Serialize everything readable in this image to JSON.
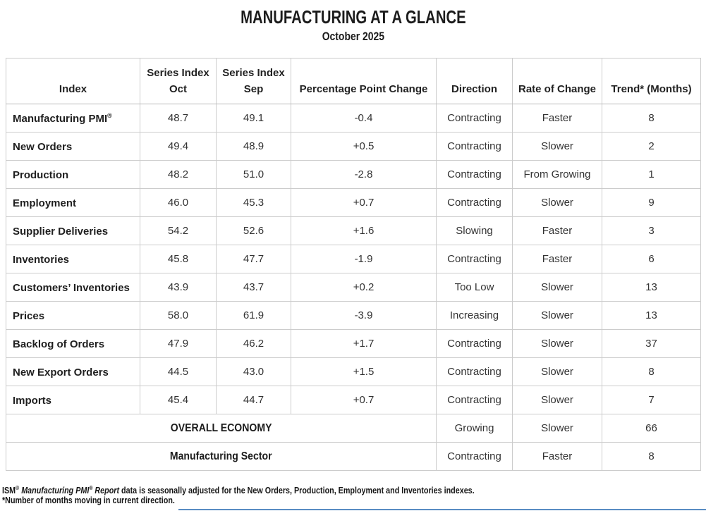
{
  "page": {
    "title": "MANUFACTURING AT A GLANCE",
    "subtitle": "October 2025"
  },
  "colors": {
    "border": "#cccccc",
    "header_divider": "#b9b9b9",
    "text": "#212121",
    "accent_line": "#3b78b8"
  },
  "table": {
    "header": [
      {
        "line1": "Index",
        "line2": ""
      },
      {
        "line1": "Series Index",
        "line2": "Oct"
      },
      {
        "line1": "Series Index",
        "line2": "Sep"
      },
      {
        "line1": "Percentage Point Change",
        "line2": ""
      },
      {
        "line1": "Direction",
        "line2": ""
      },
      {
        "line1": "Rate of Change",
        "line2": ""
      },
      {
        "line1": "Trend* (Months)",
        "line2": ""
      }
    ],
    "rows": [
      {
        "index": "Manufacturing PMI",
        "index_sup": "®",
        "oct": "48.7",
        "sep": "49.1",
        "change": "-0.4",
        "direction": "Contracting",
        "rate": "Faster",
        "trend": "8"
      },
      {
        "index": "New Orders",
        "index_sup": "",
        "oct": "49.4",
        "sep": "48.9",
        "change": "+0.5",
        "direction": "Contracting",
        "rate": "Slower",
        "trend": "2"
      },
      {
        "index": "Production",
        "index_sup": "",
        "oct": "48.2",
        "sep": "51.0",
        "change": "-2.8",
        "direction": "Contracting",
        "rate": "From Growing",
        "trend": "1"
      },
      {
        "index": "Employment",
        "index_sup": "",
        "oct": "46.0",
        "sep": "45.3",
        "change": "+0.7",
        "direction": "Contracting",
        "rate": "Slower",
        "trend": "9"
      },
      {
        "index": "Supplier Deliveries",
        "index_sup": "",
        "oct": "54.2",
        "sep": "52.6",
        "change": "+1.6",
        "direction": "Slowing",
        "rate": "Faster",
        "trend": "3"
      },
      {
        "index": "Inventories",
        "index_sup": "",
        "oct": "45.8",
        "sep": "47.7",
        "change": "-1.9",
        "direction": "Contracting",
        "rate": "Faster",
        "trend": "6"
      },
      {
        "index": "Customers’ Inventories",
        "index_sup": "",
        "oct": "43.9",
        "sep": "43.7",
        "change": "+0.2",
        "direction": "Too Low",
        "rate": "Slower",
        "trend": "13"
      },
      {
        "index": "Prices",
        "index_sup": "",
        "oct": "58.0",
        "sep": "61.9",
        "change": "-3.9",
        "direction": "Increasing",
        "rate": "Slower",
        "trend": "13"
      },
      {
        "index": "Backlog of Orders",
        "index_sup": "",
        "oct": "47.9",
        "sep": "46.2",
        "change": "+1.7",
        "direction": "Contracting",
        "rate": "Slower",
        "trend": "37"
      },
      {
        "index": "New Export Orders",
        "index_sup": "",
        "oct": "44.5",
        "sep": "43.0",
        "change": "+1.5",
        "direction": "Contracting",
        "rate": "Slower",
        "trend": "8"
      },
      {
        "index": "Imports",
        "index_sup": "",
        "oct": "45.4",
        "sep": "44.7",
        "change": "+0.7",
        "direction": "Contracting",
        "rate": "Slower",
        "trend": "7"
      }
    ],
    "summary_rows": [
      {
        "label": "OVERALL ECONOMY",
        "direction": "Growing",
        "rate": "Slower",
        "trend": "66"
      },
      {
        "label": "Manufacturing Sector",
        "direction": "Contracting",
        "rate": "Faster",
        "trend": "8"
      }
    ]
  },
  "footnotes": {
    "line1_parts": [
      {
        "text": "ISM",
        "style": "normal"
      },
      {
        "text": "®",
        "style": "sup"
      },
      {
        "text": " Manufacturing PMI",
        "style": "italic"
      },
      {
        "text": "®",
        "style": "sup-italic"
      },
      {
        "text": " Report",
        "style": "italic"
      },
      {
        "text": " data is seasonally adjusted for the New Orders, Production, Employment and Inventories indexes.",
        "style": "normal"
      }
    ],
    "line2": "*Number of months moving in current direction."
  }
}
